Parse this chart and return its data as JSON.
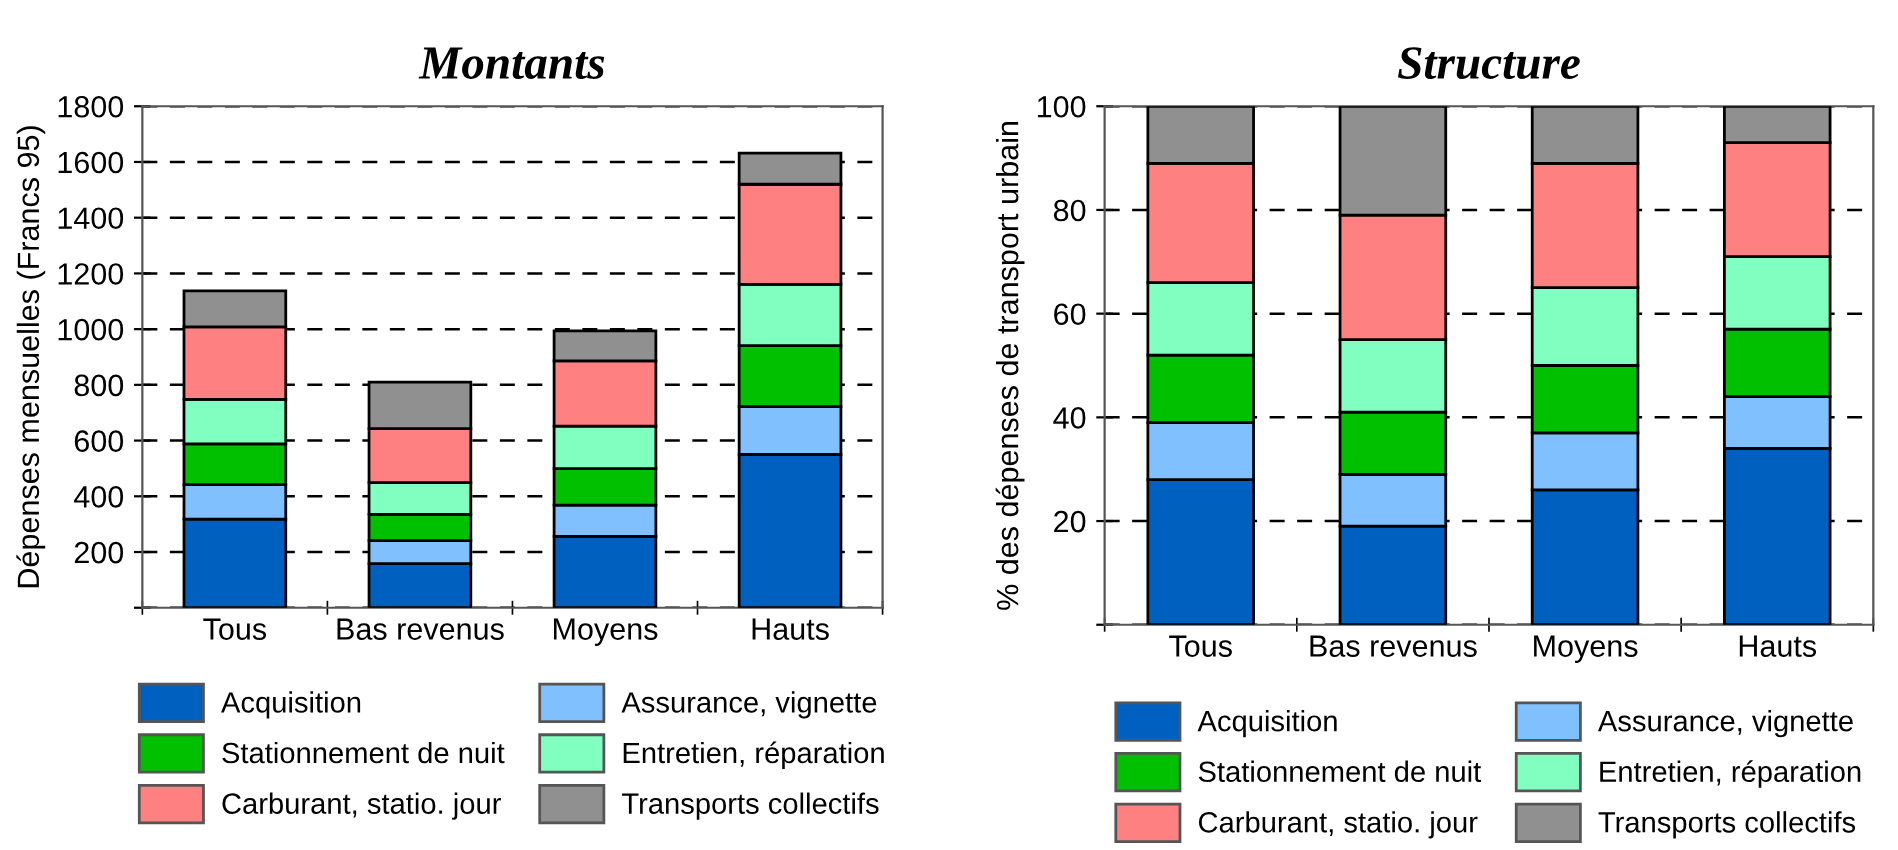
{
  "chart_data": [
    {
      "type": "bar",
      "title": "Montants",
      "ylabel": "Dépenses mensuelles (Francs 95)",
      "stacked": true,
      "categories": [
        "Tous",
        "Bas revenus",
        "Moyens",
        "Hauts"
      ],
      "series": [
        {
          "name": "Acquisition",
          "color": "#0060c0",
          "values": [
            318,
            158,
            256,
            550
          ]
        },
        {
          "name": "Assurance, vignette",
          "color": "#80c0ff",
          "values": [
            124,
            83,
            112,
            172
          ]
        },
        {
          "name": "Stationnement de nuit",
          "color": "#00c000",
          "values": [
            146,
            94,
            131,
            219
          ]
        },
        {
          "name": "Entretien, réparation",
          "color": "#80ffc0",
          "values": [
            160,
            114,
            153,
            220
          ]
        },
        {
          "name": "Carburant, statio. jour",
          "color": "#ff8080",
          "values": [
            260,
            194,
            234,
            359
          ]
        },
        {
          "name": "Transports collectifs",
          "color": "#909090",
          "values": [
            129,
            167,
            108,
            112
          ]
        }
      ],
      "ylim": [
        0,
        1800
      ],
      "yticks": [
        {
          "value": 0,
          "label": null
        },
        200,
        400,
        600,
        800,
        1000,
        1200,
        1400,
        1600,
        1800
      ],
      "grid": "y",
      "legend": "bottom"
    },
    {
      "type": "bar",
      "title": "Structure",
      "ylabel": "% des dépenses de transport urbain",
      "stacked": true,
      "categories": [
        "Tous",
        "Bas revenus",
        "Moyens",
        "Hauts"
      ],
      "series": [
        {
          "name": "Acquisition",
          "color": "#0060c0",
          "values": [
            28,
            19,
            26,
            34
          ]
        },
        {
          "name": "Assurance, vignette",
          "color": "#80c0ff",
          "values": [
            11,
            10,
            11,
            10
          ]
        },
        {
          "name": "Stationnement de nuit",
          "color": "#00c000",
          "values": [
            13,
            12,
            13,
            13
          ]
        },
        {
          "name": "Entretien, réparation",
          "color": "#80ffc0",
          "values": [
            14,
            14,
            15,
            14
          ]
        },
        {
          "name": "Carburant, statio. jour",
          "color": "#ff8080",
          "values": [
            23,
            24,
            24,
            22
          ]
        },
        {
          "name": "Transports collectifs",
          "color": "#909090",
          "values": [
            11,
            21,
            11,
            7
          ]
        }
      ],
      "ylim": [
        0,
        100
      ],
      "yticks": [
        {
          "value": 0,
          "label": null
        },
        20,
        40,
        60,
        80,
        100
      ],
      "grid": "y",
      "legend": "bottom"
    }
  ]
}
